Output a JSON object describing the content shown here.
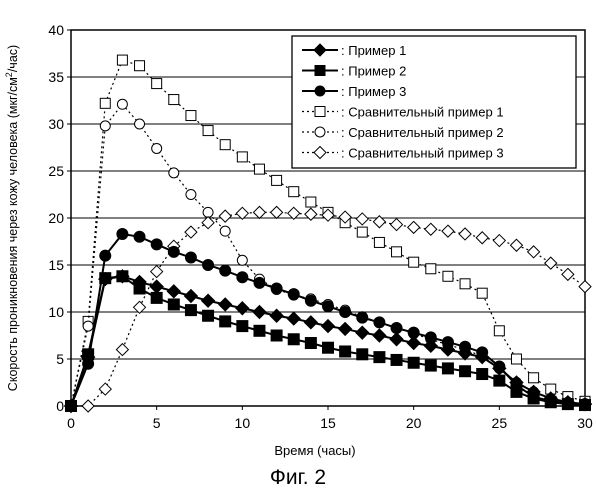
{
  "figure_caption": "Фиг. 2",
  "chart_data": {
    "type": "line",
    "xlabel": "Время (часы)",
    "ylabel": {
      "main": "Скорость проникновения через кожу человека (мкг/см",
      "sup": "2",
      "end": "/час)"
    },
    "xlim": [
      0,
      30
    ],
    "ylim": [
      0,
      40
    ],
    "xticks": [
      0,
      5,
      10,
      15,
      20,
      25,
      30
    ],
    "yticks": [
      0,
      5,
      10,
      15,
      20,
      25,
      30,
      35,
      40
    ],
    "grid": "horizontal",
    "legend_position": "top-right",
    "series": [
      {
        "name": ": Пример 1",
        "marker": "diamond",
        "filled": true,
        "line": "solid",
        "x": [
          0,
          1,
          2,
          3,
          4,
          5,
          6,
          7,
          8,
          9,
          10,
          11,
          12,
          13,
          14,
          15,
          16,
          17,
          18,
          19,
          20,
          21,
          22,
          23,
          24,
          25,
          26,
          27,
          28,
          29,
          30
        ],
        "y": [
          0,
          5.2,
          13.5,
          13.8,
          13.2,
          12.7,
          12.2,
          11.7,
          11.2,
          10.8,
          10.4,
          10.0,
          9.6,
          9.3,
          8.9,
          8.5,
          8.2,
          7.8,
          7.5,
          7.1,
          6.7,
          6.4,
          6.0,
          5.6,
          5.2,
          4.0,
          2.5,
          1.5,
          0.8,
          0.4,
          0.2
        ]
      },
      {
        "name": ": Пример 2",
        "marker": "square",
        "filled": true,
        "line": "solid",
        "x": [
          0,
          1,
          2,
          3,
          4,
          5,
          6,
          7,
          8,
          9,
          10,
          11,
          12,
          13,
          14,
          15,
          16,
          17,
          18,
          19,
          20,
          21,
          22,
          23,
          24,
          25,
          26,
          27,
          28,
          29,
          30
        ],
        "y": [
          0,
          5.5,
          13.6,
          13.8,
          12.5,
          11.5,
          10.8,
          10.2,
          9.6,
          9.0,
          8.5,
          8.0,
          7.5,
          7.1,
          6.7,
          6.2,
          5.8,
          5.5,
          5.2,
          4.9,
          4.6,
          4.3,
          4.0,
          3.7,
          3.4,
          2.7,
          1.5,
          0.8,
          0.4,
          0.2,
          0.1
        ]
      },
      {
        "name": ": Пример 3",
        "marker": "circle",
        "filled": true,
        "line": "solid",
        "x": [
          0,
          1,
          2,
          3,
          4,
          5,
          6,
          7,
          8,
          9,
          10,
          11,
          12,
          13,
          14,
          15,
          16,
          17,
          18,
          19,
          20,
          21,
          22,
          23,
          24,
          25,
          26,
          27,
          28,
          29,
          30
        ],
        "y": [
          0,
          4.5,
          16.0,
          18.3,
          18.0,
          17.2,
          16.4,
          15.8,
          15.0,
          14.4,
          13.7,
          13.1,
          12.5,
          11.9,
          11.2,
          10.6,
          10.0,
          9.4,
          8.9,
          8.3,
          7.8,
          7.3,
          6.8,
          6.3,
          5.7,
          4.2,
          2.2,
          1.0,
          0.5,
          0.3,
          0.2
        ]
      },
      {
        "name": ": Сравнительный пример 1",
        "marker": "square",
        "filled": false,
        "line": "dotted",
        "x": [
          0,
          1,
          2,
          3,
          4,
          5,
          6,
          7,
          8,
          9,
          10,
          11,
          12,
          13,
          14,
          15,
          16,
          17,
          18,
          19,
          20,
          21,
          22,
          23,
          24,
          25,
          26,
          27,
          28,
          29,
          30
        ],
        "y": [
          0,
          9.0,
          32.2,
          36.8,
          36.2,
          34.3,
          32.6,
          30.9,
          29.3,
          27.8,
          26.5,
          25.2,
          24.0,
          22.8,
          21.7,
          20.6,
          19.5,
          18.5,
          17.4,
          16.4,
          15.3,
          14.6,
          13.8,
          13.0,
          12.0,
          8.0,
          5.0,
          3.0,
          1.8,
          1.0,
          0.5
        ]
      },
      {
        "name": ": Сравнительный пример 2",
        "marker": "circle",
        "filled": false,
        "line": "dotted",
        "x": [
          0,
          1,
          2,
          3,
          4,
          5,
          6,
          7,
          8,
          9,
          10,
          11,
          12,
          13,
          14,
          15,
          16,
          17,
          18,
          19,
          20,
          21,
          22,
          23,
          24,
          25,
          26,
          27,
          28,
          29,
          30
        ],
        "y": [
          0,
          8.5,
          29.8,
          32.1,
          30.0,
          27.4,
          24.8,
          22.5,
          20.6,
          18.6,
          15.5,
          13.5,
          12.4,
          11.8,
          11.4,
          10.8,
          10.2,
          9.5,
          8.9,
          8.3,
          7.7,
          7.1,
          6.5,
          6.0,
          5.3,
          4.0,
          2.5,
          1.5,
          0.8,
          0.4,
          0.2
        ]
      },
      {
        "name": ": Сравнительный пример 3",
        "marker": "diamond",
        "filled": false,
        "line": "dotted",
        "x": [
          0,
          1,
          2,
          3,
          4,
          5,
          6,
          7,
          8,
          9,
          10,
          11,
          12,
          13,
          14,
          15,
          16,
          17,
          18,
          19,
          20,
          21,
          22,
          23,
          24,
          25,
          26,
          27,
          28,
          29,
          30
        ],
        "y": [
          0,
          0,
          1.8,
          6.0,
          10.5,
          14.3,
          17.0,
          18.5,
          19.5,
          20.2,
          20.5,
          20.6,
          20.6,
          20.5,
          20.4,
          20.3,
          20.1,
          19.9,
          19.6,
          19.3,
          19.0,
          18.8,
          18.6,
          18.3,
          17.9,
          17.6,
          17.1,
          16.4,
          15.2,
          14.0,
          12.7
        ]
      }
    ]
  }
}
